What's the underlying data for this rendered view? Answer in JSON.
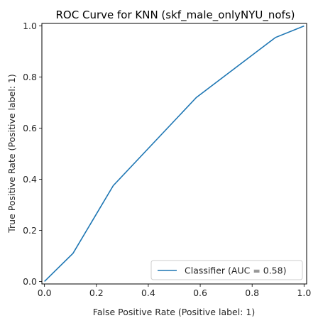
{
  "chart_data": {
    "type": "line",
    "title": "ROC Curve for KNN (skf_male_onlyNYU_nofs)",
    "xlabel": "False Positive Rate (Positive label: 1)",
    "ylabel": "True Positive Rate (Positive label: 1)",
    "xlim": [
      -0.01,
      1.01
    ],
    "ylim": [
      -0.01,
      1.01
    ],
    "xticks": [
      "0.0",
      "0.2",
      "0.4",
      "0.6",
      "0.8",
      "1.0"
    ],
    "yticks": [
      "0.0",
      "0.2",
      "0.4",
      "0.6",
      "0.8",
      "1.0"
    ],
    "grid": false,
    "legend_position": "lower-right",
    "series": [
      {
        "name": "Classifier (AUC = 0.58)",
        "color": "#1f77b4",
        "x": [
          0.0,
          0.11,
          0.265,
          0.585,
          0.89,
          1.0
        ],
        "y": [
          0.0,
          0.11,
          0.375,
          0.72,
          0.955,
          1.0
        ]
      }
    ]
  }
}
